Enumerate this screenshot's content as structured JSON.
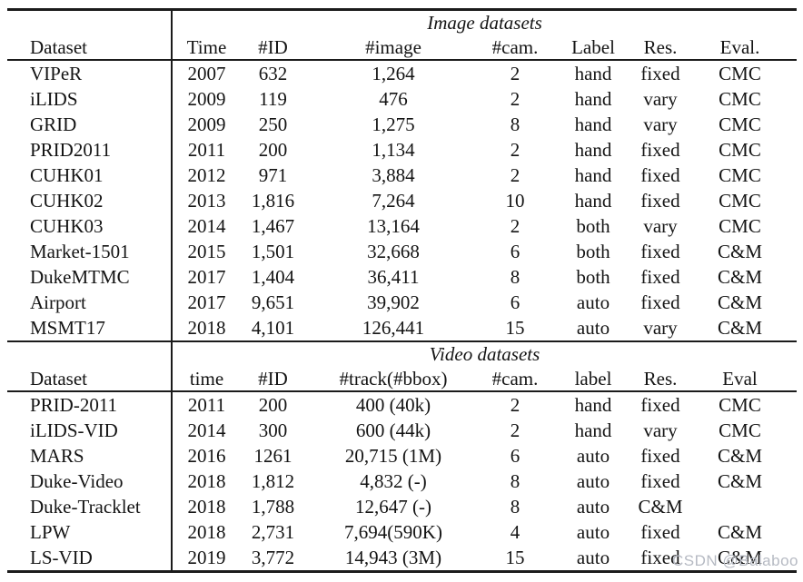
{
  "watermark": {
    "text": "CSDN @Balaboo",
    "color": "#b6bac3"
  },
  "image_table": {
    "title": "Image datasets",
    "columns": [
      "Dataset",
      "Time",
      "#ID",
      "#image",
      "#cam.",
      "Label",
      "Res.",
      "Eval."
    ],
    "rows": [
      [
        "VIPeR",
        "2007",
        "632",
        "1,264",
        "2",
        "hand",
        "fixed",
        "CMC"
      ],
      [
        "iLIDS",
        "2009",
        "119",
        "476",
        "2",
        "hand",
        "vary",
        "CMC"
      ],
      [
        "GRID",
        "2009",
        "250",
        "1,275",
        "8",
        "hand",
        "vary",
        "CMC"
      ],
      [
        "PRID2011",
        "2011",
        "200",
        "1,134",
        "2",
        "hand",
        "fixed",
        "CMC"
      ],
      [
        "CUHK01",
        "2012",
        "971",
        "3,884",
        "2",
        "hand",
        "fixed",
        "CMC"
      ],
      [
        "CUHK02",
        "2013",
        "1,816",
        "7,264",
        "10",
        "hand",
        "fixed",
        "CMC"
      ],
      [
        "CUHK03",
        "2014",
        "1,467",
        "13,164",
        "2",
        "both",
        "vary",
        "CMC"
      ],
      [
        "Market-1501",
        "2015",
        "1,501",
        "32,668",
        "6",
        "both",
        "fixed",
        "C&M"
      ],
      [
        "DukeMTMC",
        "2017",
        "1,404",
        "36,411",
        "8",
        "both",
        "fixed",
        "C&M"
      ],
      [
        "Airport",
        "2017",
        "9,651",
        "39,902",
        "6",
        "auto",
        "fixed",
        "C&M"
      ],
      [
        "MSMT17",
        "2018",
        "4,101",
        "126,441",
        "15",
        "auto",
        "vary",
        "C&M"
      ]
    ]
  },
  "video_table": {
    "title": "Video datasets",
    "columns": [
      "Dataset",
      "time",
      "#ID",
      "#track(#bbox)",
      "#cam.",
      "label",
      "Res.",
      "Eval"
    ],
    "rows": [
      [
        "PRID-2011",
        "2011",
        "200",
        "400 (40k)",
        "2",
        "hand",
        "fixed",
        "CMC"
      ],
      [
        "iLIDS-VID",
        "2014",
        "300",
        "600 (44k)",
        "2",
        "hand",
        "vary",
        "CMC"
      ],
      [
        "MARS",
        "2016",
        "1261",
        "20,715 (1M)",
        "6",
        "auto",
        "fixed",
        "C&M"
      ],
      [
        "Duke-Video",
        "2018",
        "1,812",
        "4,832 (-)",
        "8",
        "auto",
        "fixed",
        "C&M"
      ],
      [
        "Duke-Tracklet",
        "2018",
        "1,788",
        "12,647 (-)",
        "8",
        "auto",
        "C&M",
        ""
      ],
      [
        "LPW",
        "2018",
        "2,731",
        "7,694(590K)",
        "4",
        "auto",
        "fixed",
        "C&M"
      ],
      [
        "LS-VID",
        "2019",
        "3,772",
        "14,943 (3M)",
        "15",
        "auto",
        "fixed",
        "C&M"
      ]
    ]
  }
}
